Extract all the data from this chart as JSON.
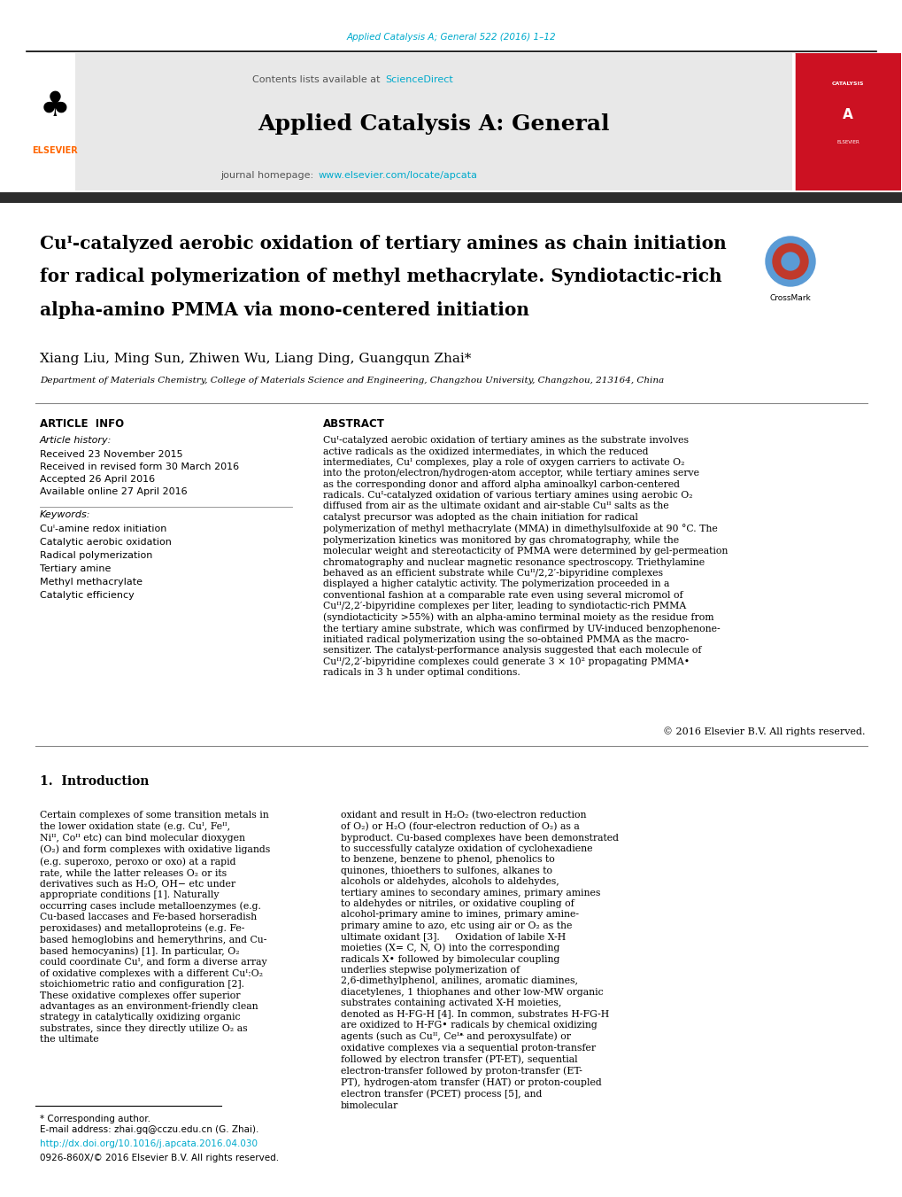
{
  "page_width": 10.2,
  "page_height": 13.51,
  "bg_color": "#ffffff",
  "top_link_text": "Applied Catalysis A; General 522 (2016) 1–12",
  "top_link_color": "#00AACC",
  "header_bg": "#e8e8e8",
  "header_title": "Applied Catalysis A: General",
  "journal_link_color": "#00AACC",
  "elsevier_color": "#FF6600",
  "dark_bar_color": "#2c2c2c",
  "article_title_line1": "Cuᴵ-catalyzed aerobic oxidation of tertiary amines as chain initiation",
  "article_title_line2": "for radical polymerization of methyl methacrylate. Syndiotactic-rich",
  "article_title_line3": "alpha-amino PMMA via mono-centered initiation",
  "authors": "Xiang Liu, Ming Sun, Zhiwen Wu, Liang Ding, Guangqun Zhai",
  "affiliation": "Department of Materials Chemistry, College of Materials Science and Engineering, Changzhou University, Changzhou, 213164, China",
  "article_info_header": "ARTICLE  INFO",
  "abstract_header": "ABSTRACT",
  "article_history_label": "Article history:",
  "received_text": "Received 23 November 2015",
  "revised_text": "Received in revised form 30 March 2016",
  "accepted_text": "Accepted 26 April 2016",
  "available_text": "Available online 27 April 2016",
  "keywords_label": "Keywords:",
  "keywords": [
    "Cuᴵ-amine redox initiation",
    "Catalytic aerobic oxidation",
    "Radical polymerization",
    "Tertiary amine",
    "Methyl methacrylate",
    "Catalytic efficiency"
  ],
  "abstract_text": "Cuᴵ-catalyzed aerobic oxidation of tertiary amines as the substrate involves active radicals as the oxidized intermediates, in which the reduced intermediates, Cuᴵ complexes, play a role of oxygen carriers to activate O₂ into the proton/electron/hydrogen-atom acceptor, while tertiary amines serve as the corresponding donor and afford alpha aminoalkyl carbon-centered radicals. Cuᴵ-catalyzed oxidation of various tertiary amines using aerobic O₂ diffused from air as the ultimate oxidant and air-stable Cuᴵᴵ salts as the catalyst precursor was adopted as the chain initiation for radical polymerization of methyl methacrylate (MMA) in dimethylsulfoxide at 90 °C. The polymerization kinetics was monitored by gas chromatography, while the molecular weight and stereotacticity of PMMA were determined by gel-permeation chromatography and nuclear magnetic resonance spectroscopy. Triethylamine behaved as an efficient substrate while Cuᴵᴵ/2,2′-bipyridine complexes displayed a higher catalytic activity. The polymerization proceeded in a conventional fashion at a comparable rate even using several micromol of Cuᴵᴵ/2,2′-bipyridine complexes per liter, leading to syndiotactic-rich PMMA (syndiotacticity >55%) with an alpha-amino terminal moiety as the residue from the tertiary amine substrate, which was confirmed by UV-induced benzophenone-initiated radical polymerization using the so-obtained PMMA as the macro-sensitizer. The catalyst-performance analysis suggested that each molecule of Cuᴵᴵ/2,2′-bipyridine complexes could generate 3 × 10² propagating PMMA• radicals in 3 h under optimal conditions.",
  "copyright_text": "© 2016 Elsevier B.V. All rights reserved.",
  "intro_section": "1.  Introduction",
  "intro_text_left": "Certain complexes of some transition metals in the lower oxidation state (e.g. Cuᴵ, Feᴵᴵ, Niᴵᴵ, Coᴵᴵ etc) can bind molecular dioxygen (O₂) and form complexes with oxidative ligands (e.g. superoxo, peroxo or oxo) at a rapid rate, while the latter releases O₂ or its derivatives such as H₂O, OH− etc under appropriate conditions [1]. Naturally occurring cases include metalloenzymes (e.g. Cu-based laccases and Fe-based horseradish peroxidases) and metalloproteins (e.g. Fe-based hemoglobins and hemerythrins, and Cu-based hemocyanins) [1]. In particular, O₂ could coordinate Cuᴵ, and form a diverse array of oxidative complexes with a different Cuᴵ:O₂ stoichiometric ratio and configuration [2].\n    These oxidative complexes offer superior advantages as an environment-friendly clean strategy in catalytically oxidizing organic substrates, since they directly utilize O₂ as the ultimate",
  "intro_text_right": "oxidant and result in H₂O₂ (two-electron reduction of O₂) or H₂O (four-electron reduction of O₂) as a byproduct. Cu-based complexes have been demonstrated to successfully catalyze oxidation of cyclohexadiene to benzene, benzene to phenol, phenolics to quinones, thioethers to sulfones, alkanes to alcohols or aldehydes, alcohols to aldehydes, tertiary amines to secondary amines, primary amines to aldehydes or nitriles, or oxidative coupling of alcohol-primary amine to imines, primary amine-primary amine to azo, etc using air or O₂ as the ultimate oxidant [3].\n    Oxidation of labile X-H moieties (X= C, N, O) into the corresponding radicals X• followed by bimolecular coupling underlies stepwise polymerization of 2,6-dimethylphenol, anilines, aromatic diamines, diacetylenes, 1 thiophanes and other low-MW organic substrates containing activated X-H moieties, denoted as H-FG-H [4]. In common, substrates H-FG-H are oxidized to H-FG• radicals by chemical oxidizing agents (such as Cuᴵᴵ, Ceᴵᵜ and peroxysulfate) or oxidative complexes via a sequential proton-transfer followed by electron transfer (PT-ET), sequential electron-transfer followed by proton-transfer (ET-PT), hydrogen-atom transfer (HAT) or proton-coupled electron transfer (PCET) process [5], and bimolecular",
  "footnote_star": "* Corresponding author.",
  "footnote_email_label": "E-mail address:",
  "footnote_email": "zhai.gq@cczu.edu.cn (G. Zhai).",
  "footnote_doi": "http://dx.doi.org/10.1016/j.apcata.2016.04.030",
  "footnote_issn": "0926-860X/© 2016 Elsevier B.V. All rights reserved."
}
